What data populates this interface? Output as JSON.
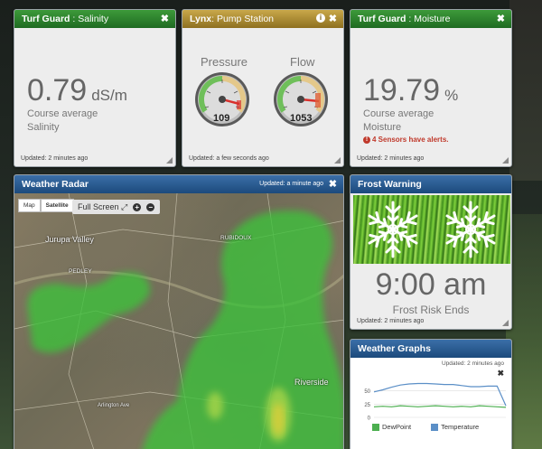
{
  "colors": {
    "dewpoint": "#4caf50",
    "temperature": "#5b8fc7"
  },
  "salinity": {
    "title_brand": "Turf Guard",
    "title_sep": " : ",
    "title_metric": "Salinity",
    "value": "0.79",
    "unit": "dS/m",
    "caption1": "Course average",
    "caption2": "Salinity",
    "updated": "Updated: 2 minutes ago"
  },
  "pump": {
    "title_brand": "Lynx",
    "title_sep": ": ",
    "title_metric": "Pump Station",
    "pressure_label": "Pressure",
    "pressure_value": "109",
    "flow_label": "Flow",
    "flow_value": "1053",
    "updated": "Updated: a few seconds ago"
  },
  "moisture": {
    "title_brand": "Turf Guard",
    "title_sep": " : ",
    "title_metric": "Moisture",
    "value": "19.79",
    "unit": "%",
    "caption1": "Course average",
    "caption2": "Moisture",
    "alert": "4 Sensors have alerts.",
    "alert_icon": "!",
    "updated": "Updated: 2 minutes ago"
  },
  "radar": {
    "title": "Weather Radar",
    "updated": "Updated: a minute ago",
    "map_btn": "Map",
    "satellite_btn": "Satellite",
    "fullscreen": "Full Screen",
    "zoom_in": "+",
    "zoom_out": "−",
    "places": [
      "Jurupa Valley",
      "PEDLEY",
      "RUBIDOUX",
      "Riverside",
      "Arlington Ave"
    ]
  },
  "frost": {
    "title": "Frost Warning",
    "time": "9:00 am",
    "caption": "Frost Risk Ends",
    "updated": "Updated: 2 minutes ago"
  },
  "graphs": {
    "title": "Weather Graphs",
    "updated": "Updated: 2 minutes ago",
    "close": "✖",
    "legend_dewpoint": "DewPoint",
    "legend_temperature": "Temperature"
  },
  "chart_data": {
    "type": "line",
    "title": "",
    "xlabel": "",
    "ylabel": "",
    "ylim": [
      0,
      75
    ],
    "yticks": [
      "0",
      "25",
      "50"
    ],
    "grid": true,
    "legend": "bottom",
    "series": [
      {
        "name": "DewPoint",
        "values": [
          20,
          21,
          20,
          22,
          21,
          20,
          21,
          22,
          21,
          20,
          21,
          20,
          22,
          21,
          20,
          19
        ]
      },
      {
        "name": "Temperature",
        "values": [
          48,
          52,
          57,
          61,
          63,
          64,
          64,
          63,
          62,
          62,
          60,
          58,
          58,
          59,
          59,
          22
        ]
      }
    ]
  }
}
